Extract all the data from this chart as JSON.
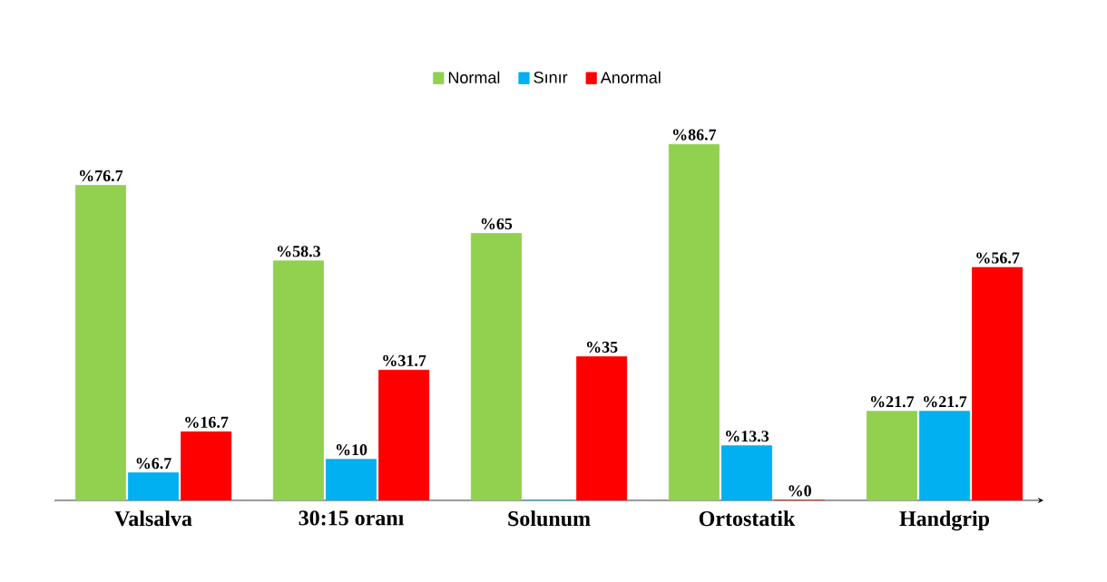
{
  "chart_data": {
    "type": "bar",
    "categories": [
      "Valsalva",
      "30:15 oranı",
      "Solunum",
      "Ortostatik",
      "Handgrip"
    ],
    "legend": "top",
    "series": [
      {
        "name": "Normal",
        "color": "#92d050",
        "values": [
          76.7,
          58.3,
          65,
          86.7,
          21.7
        ],
        "value_labels": [
          "%76.7",
          "%58.3",
          "%65",
          "%86.7",
          "%21.7"
        ]
      },
      {
        "name": "Sınır",
        "color": "#00b0f0",
        "values": [
          6.7,
          10,
          0,
          13.3,
          21.7
        ],
        "value_labels": [
          "%6.7",
          "%10",
          null,
          "%13.3",
          "%21.7"
        ]
      },
      {
        "name": "Anormal",
        "color": "#ff0000",
        "values": [
          16.7,
          31.7,
          35,
          0,
          56.7
        ],
        "value_labels": [
          "%16.7",
          "%31.7",
          "%35",
          "%0",
          "%56.7"
        ]
      }
    ]
  }
}
